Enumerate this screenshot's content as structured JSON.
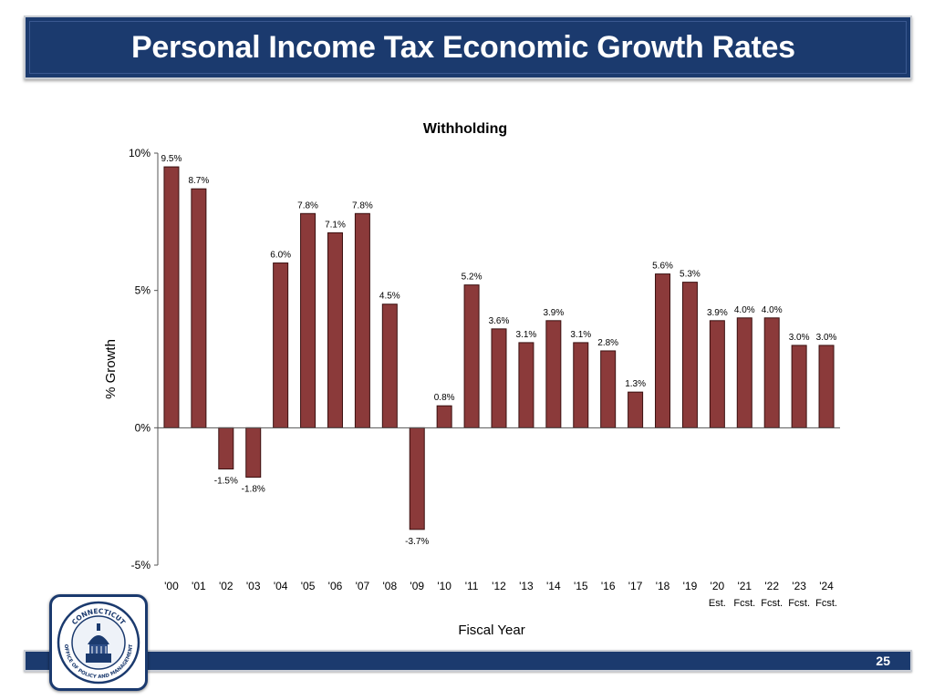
{
  "header": {
    "title": "Personal Income Tax Economic Growth Rates"
  },
  "footer": {
    "page_number": "25"
  },
  "seal": {
    "top_text": "CONNECTICUT",
    "bottom_text": "OFFICE OF POLICY AND MANAGEMENT",
    "color": "#1b3a6e"
  },
  "chart_data": {
    "type": "bar",
    "title": "Withholding",
    "xlabel": "Fiscal Year",
    "ylabel": "% Growth",
    "ylim": [
      -5,
      10
    ],
    "yticks": [
      "10%",
      "5%",
      "0%",
      "-5%"
    ],
    "ytick_values": [
      10,
      5,
      0,
      -5
    ],
    "bar_color": "#8b3a3a",
    "categories": [
      "'00",
      "'01",
      "'02",
      "'03",
      "'04",
      "'05",
      "'06",
      "'07",
      "'08",
      "'09",
      "'10",
      "'11",
      "'12",
      "'13",
      "'14",
      "'15",
      "'16",
      "'17",
      "'18",
      "'19",
      "'20",
      "'21",
      "'22",
      "'23",
      "'24"
    ],
    "sublabels": [
      "",
      "",
      "",
      "",
      "",
      "",
      "",
      "",
      "",
      "",
      "",
      "",
      "",
      "",
      "",
      "",
      "",
      "",
      "",
      "",
      "Est.",
      "Fcst.",
      "Fcst.",
      "Fcst.",
      "Fcst."
    ],
    "values": [
      9.5,
      8.7,
      -1.5,
      -1.8,
      6.0,
      7.8,
      7.1,
      7.8,
      4.5,
      -3.7,
      0.8,
      5.2,
      3.6,
      3.1,
      3.9,
      3.1,
      2.8,
      1.3,
      5.6,
      5.3,
      3.9,
      4.0,
      4.0,
      3.0,
      3.0
    ],
    "data_labels": [
      "9.5%",
      "8.7%",
      "-1.5%",
      "-1.8%",
      "6.0%",
      "7.8%",
      "7.1%",
      "7.8%",
      "4.5%",
      "-3.7%",
      "0.8%",
      "5.2%",
      "3.6%",
      "3.1%",
      "3.9%",
      "3.1%",
      "2.8%",
      "1.3%",
      "5.6%",
      "5.3%",
      "3.9%",
      "4.0%",
      "4.0%",
      "3.0%",
      "3.0%"
    ],
    "grid": false,
    "legend": "none"
  }
}
